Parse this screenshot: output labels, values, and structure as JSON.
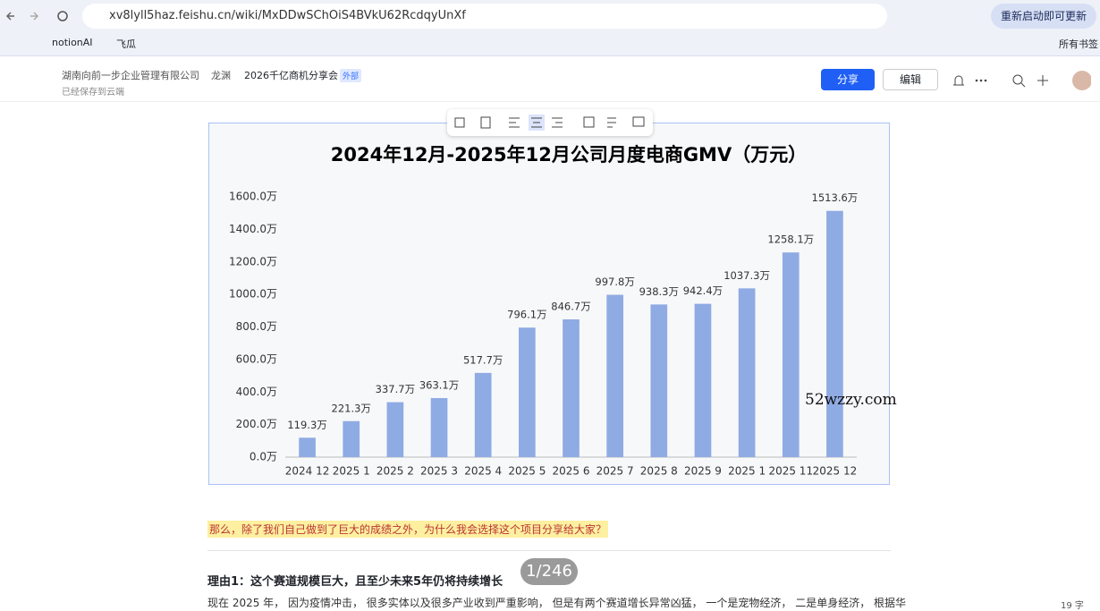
{
  "browser": {
    "url": "xv8lyll5haz.feishu.cn/wiki/MxDDwSChOiS4BVkU62RcdqyUnXf",
    "update_button": "重新启动即可更新",
    "bookmarks": [
      "notionAI",
      "飞瓜"
    ],
    "all_bookmarks": "所有书签"
  },
  "doc_header": {
    "breadcrumbs": [
      "湖南向前一步企业管理有限公司",
      "龙渊",
      "2026千亿商机分享会"
    ],
    "tag": "外部",
    "save_status": "已经保存到云端",
    "share": "分享",
    "edit": "编辑"
  },
  "chart_data": {
    "type": "bar",
    "title": "2024年12月-2025年12月公司月度电商GMV（万元）",
    "categories": [
      "2024 12",
      "2025 1",
      "2025 2",
      "2025 3",
      "2025 4",
      "2025 5",
      "2025 6",
      "2025 7",
      "2025 8",
      "2025 9",
      "2025 1",
      "2025 11",
      "2025 12"
    ],
    "values": [
      119.3,
      221.3,
      337.7,
      363.1,
      517.7,
      796.1,
      846.7,
      997.8,
      938.3,
      942.4,
      1037.3,
      1258.1,
      1513.6
    ],
    "value_labels": [
      "119.3万",
      "221.3万",
      "337.7万",
      "363.1万",
      "517.7万",
      "796.1万",
      "846.7万",
      "997.8万",
      "938.3万",
      "942.4万",
      "1037.3万",
      "1258.1万",
      "1513.6万"
    ],
    "color": "#8fabe3",
    "ylim": [
      0,
      1600
    ],
    "yticks": [
      {
        "value": 0,
        "label": "0.0万"
      },
      {
        "value": 200,
        "label": "200.0万"
      },
      {
        "value": 400,
        "label": "400.0万"
      },
      {
        "value": 600,
        "label": "600.0万"
      },
      {
        "value": 800,
        "label": "800.0万"
      },
      {
        "value": 1000,
        "label": "1000.0万"
      },
      {
        "value": 1200,
        "label": "1200.0万"
      },
      {
        "value": 1400,
        "label": "1400.0万"
      },
      {
        "value": 1600,
        "label": "1600.0万"
      }
    ],
    "grid": false
  },
  "watermark": "52wzzy.com",
  "body": {
    "highlight": "那么，除了我们自己做到了巨大的成绩之外，为什么我会选择这个项目分享给大家？",
    "heading": "理由1：这个赛道规模巨大，且至少未来5年仍将持续增长",
    "paragraph": "现在 2025 年， 因为疫情冲击， 很多实体以及很多产业收到严重影响， 但是有两个赛道增长异常凶猛， 一个是宠物经济， 二是单身经济， 根据华"
  },
  "page_counter": "1/246",
  "word_count": "19 字"
}
